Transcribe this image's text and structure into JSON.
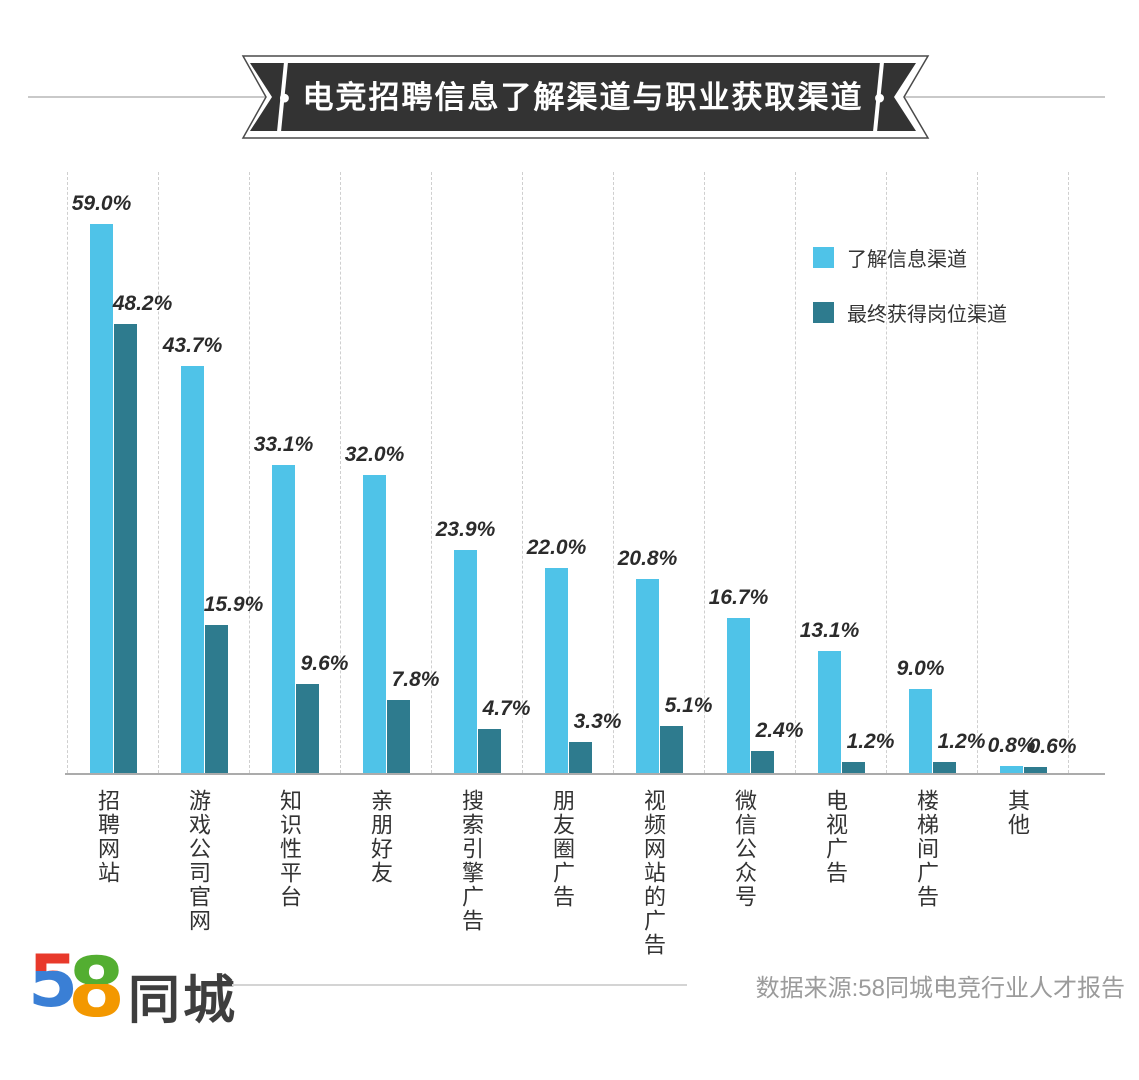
{
  "banner": {
    "title": "•  电竞招聘信息了解渠道与职业获取渠道  •"
  },
  "legend": {
    "series1_label": "了解信息渠道",
    "series2_label": "最终获得岗位渠道"
  },
  "footer": {
    "logo_digit_5": "5",
    "logo_digit_8": "8",
    "logo_cn": "同城",
    "source": "数据来源:58同城电竞行业人才报告"
  },
  "colors": {
    "series_light": "#4fc3e8",
    "series_dark": "#2e7b8e",
    "banner_fill": "#333333",
    "logo_red": "#e8392b",
    "logo_blue": "#3a7fd5",
    "logo_green": "#53ae31",
    "logo_orange": "#f39800"
  },
  "chart_data": {
    "type": "bar",
    "title": "电竞招聘信息了解渠道与职业获取渠道",
    "categories": [
      "招聘网站",
      "游戏公司官网",
      "知识性平台",
      "亲朋好友",
      "搜索引擎广告",
      "朋友圈广告",
      "视频网站的广告",
      "微信公众号",
      "电视广告",
      "楼梯间广告",
      "其他"
    ],
    "series": [
      {
        "name": "了解信息渠道",
        "color": "#4fc3e8",
        "values": [
          59.0,
          43.7,
          33.1,
          32.0,
          23.9,
          22.0,
          20.8,
          16.7,
          13.1,
          9.0,
          0.8
        ]
      },
      {
        "name": "最终获得岗位渠道",
        "color": "#2e7b8e",
        "values": [
          48.2,
          15.9,
          9.6,
          7.8,
          4.7,
          3.3,
          5.1,
          2.4,
          1.2,
          1.2,
          0.6
        ]
      }
    ],
    "value_suffix": "%",
    "value_decimals": 1,
    "xlabel": "",
    "ylabel": "",
    "ylim": [
      0,
      64
    ],
    "grid": "dashed-vertical",
    "legend_position": "top-right",
    "data_source": "数据来源:58同城电竞行业人才报告"
  }
}
